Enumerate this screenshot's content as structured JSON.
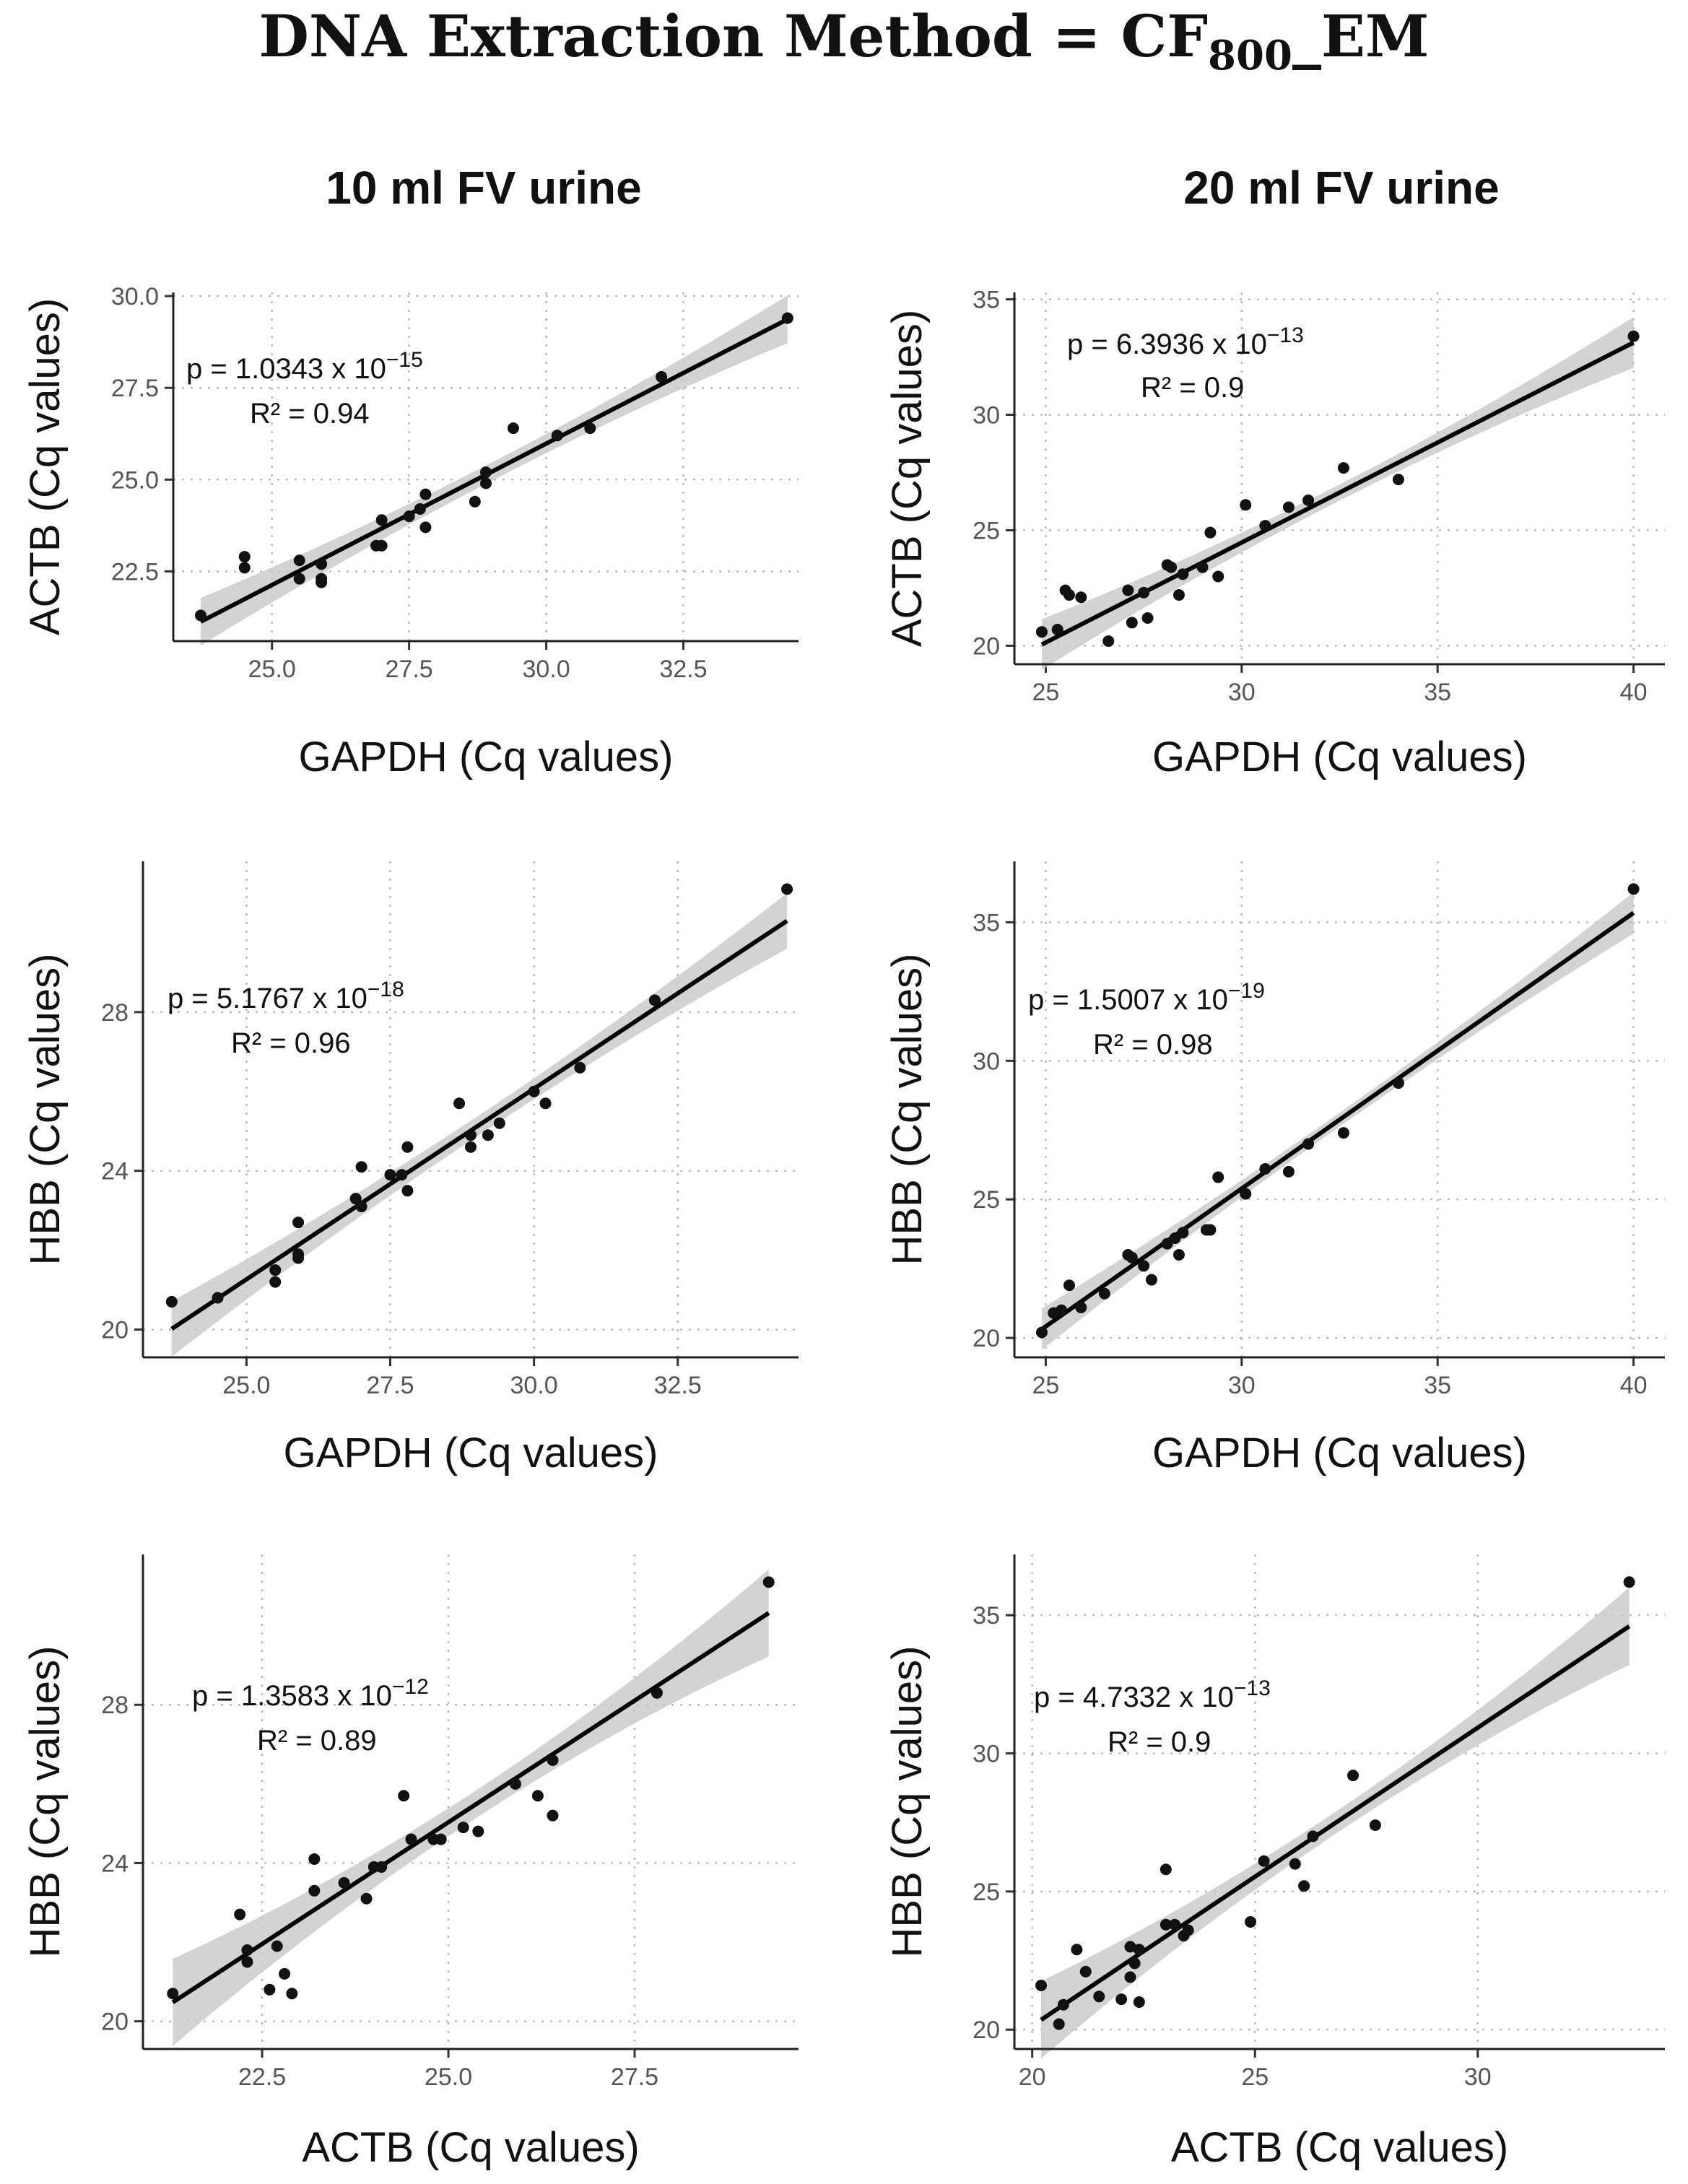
{
  "figure_title": "DNA Extraction Method = CF",
  "figure_title_sub": "800",
  "figure_title_suffix": "_EM",
  "column_titles": [
    "10 ml FV urine",
    "20 ml FV urine"
  ],
  "chart_data": [
    {
      "id": "p1",
      "type": "scatter",
      "column": "10 ml FV urine",
      "xlabel": "GAPDH (Cq values)",
      "ylabel": "ACTB (Cq values)",
      "xlim": [
        23.2,
        34.6
      ],
      "ylim": [
        20.6,
        30.1
      ],
      "xticks": [
        "25.0",
        "27.5",
        "30.0",
        "32.5"
      ],
      "yticks": [
        "22.5",
        "25.0",
        "27.5",
        "30.0"
      ],
      "p_label": "p = 1.0343 x 10",
      "p_exp": "−15",
      "r2_label": "R² = 0.94",
      "fit": {
        "intercept": 2.88,
        "slope": 0.77,
        "band_half_width_ends": 0.65,
        "band_half_width_mid": 0.25
      },
      "x": [
        23.7,
        24.5,
        24.5,
        25.5,
        25.5,
        25.9,
        25.9,
        25.9,
        26.9,
        27.0,
        27.0,
        27.5,
        27.7,
        27.8,
        27.8,
        28.7,
        28.9,
        28.9,
        29.4,
        30.2,
        30.8,
        32.1,
        34.4
      ],
      "y": [
        21.3,
        22.6,
        22.9,
        22.3,
        22.8,
        22.2,
        22.3,
        22.7,
        23.2,
        23.2,
        23.9,
        24.0,
        24.2,
        23.7,
        24.6,
        24.4,
        24.9,
        25.2,
        26.4,
        26.2,
        26.4,
        27.8,
        29.4
      ]
    },
    {
      "id": "p2",
      "type": "scatter",
      "column": "20 ml FV urine",
      "xlabel": "GAPDH (Cq values)",
      "ylabel": "ACTB (Cq values)",
      "xlim": [
        24.2,
        40.8
      ],
      "ylim": [
        19.2,
        35.3
      ],
      "xticks": [
        "25",
        "30",
        "35",
        "40"
      ],
      "yticks": [
        "20",
        "25",
        "30",
        "35"
      ],
      "p_label": "p = 6.3936 x 10",
      "p_exp": "−13",
      "r2_label": "R² = 0.9",
      "fit": {
        "intercept": -1.51,
        "slope": 0.866,
        "band_half_width_ends": 1.1,
        "band_half_width_mid": 0.35
      },
      "x": [
        24.9,
        25.3,
        25.5,
        25.6,
        25.9,
        26.6,
        27.1,
        27.2,
        27.5,
        27.6,
        28.1,
        28.2,
        28.4,
        28.5,
        29.0,
        29.2,
        29.4,
        30.1,
        30.6,
        31.2,
        31.7,
        32.6,
        34.0,
        40.0
      ],
      "y": [
        20.6,
        20.7,
        22.4,
        22.2,
        22.1,
        20.2,
        22.4,
        21.0,
        22.3,
        21.2,
        23.5,
        23.4,
        22.2,
        23.1,
        23.4,
        24.9,
        23.0,
        26.1,
        25.2,
        26.0,
        26.3,
        27.7,
        27.2,
        33.4
      ]
    },
    {
      "id": "p3",
      "type": "scatter",
      "column": "10 ml FV urine",
      "xlabel": "GAPDH (Cq values)",
      "ylabel": "HBB (Cq values)",
      "xlim": [
        23.2,
        34.6
      ],
      "ylim": [
        19.3,
        31.8
      ],
      "xticks": [
        "25.0",
        "27.5",
        "30.0",
        "32.5"
      ],
      "yticks": [
        "20",
        "24",
        "28"
      ],
      "p_label": "p = 5.1767 x 10",
      "p_exp": "−18",
      "r2_label": "R² = 0.96",
      "fit": {
        "intercept": -2.76,
        "slope": 0.961,
        "band_half_width_ends": 0.7,
        "band_half_width_mid": 0.25
      },
      "x": [
        23.7,
        24.5,
        25.5,
        25.5,
        25.9,
        25.9,
        25.9,
        26.9,
        27.0,
        27.0,
        27.5,
        27.7,
        27.8,
        27.8,
        28.7,
        28.9,
        28.9,
        29.2,
        29.4,
        30.0,
        30.2,
        30.8,
        32.1,
        34.4
      ],
      "y": [
        20.7,
        20.8,
        21.2,
        21.5,
        21.8,
        21.9,
        22.7,
        23.3,
        23.1,
        24.1,
        23.9,
        23.9,
        23.5,
        24.6,
        25.7,
        24.6,
        24.9,
        24.9,
        25.2,
        26.0,
        25.7,
        26.6,
        28.3,
        31.1
      ]
    },
    {
      "id": "p4",
      "type": "scatter",
      "column": "20 ml FV urine",
      "xlabel": "GAPDH (Cq values)",
      "ylabel": "HBB (Cq values)",
      "xlim": [
        24.2,
        40.8
      ],
      "ylim": [
        19.3,
        37.2
      ],
      "xticks": [
        "25",
        "30",
        "35",
        "40"
      ],
      "yticks": [
        "20",
        "25",
        "30",
        "35"
      ],
      "p_label": "p = 1.5007 x 10",
      "p_exp": "−19",
      "r2_label": "R² = 0.98",
      "fit": {
        "intercept": -4.46,
        "slope": 0.995,
        "band_half_width_ends": 0.75,
        "band_half_width_mid": 0.25
      },
      "x": [
        24.9,
        25.2,
        25.4,
        25.6,
        25.9,
        26.5,
        27.1,
        27.2,
        27.5,
        27.7,
        28.1,
        28.3,
        28.4,
        28.5,
        29.1,
        29.2,
        29.4,
        30.1,
        30.6,
        31.2,
        31.7,
        32.6,
        34.0,
        40.0
      ],
      "y": [
        20.2,
        20.9,
        21.0,
        21.9,
        21.1,
        21.6,
        23.0,
        22.9,
        22.6,
        22.1,
        23.4,
        23.6,
        23.0,
        23.8,
        23.9,
        23.9,
        25.8,
        25.2,
        26.1,
        26.0,
        27.0,
        27.4,
        29.2,
        36.2
      ]
    },
    {
      "id": "p5",
      "type": "scatter",
      "column": "10 ml FV urine",
      "xlabel": "ACTB (Cq values)",
      "ylabel": "HBB (Cq values)",
      "xlim": [
        20.9,
        29.7
      ],
      "ylim": [
        19.3,
        31.8
      ],
      "xticks": [
        "22.5",
        "25.0",
        "27.5"
      ],
      "yticks": [
        "20",
        "24",
        "28"
      ],
      "p_label": "p = 1.3583 x 10",
      "p_exp": "−12",
      "r2_label": "R² = 0.89",
      "fit": {
        "intercept": -5.72,
        "slope": 1.23,
        "band_half_width_ends": 1.1,
        "band_half_width_mid": 0.35
      },
      "x": [
        21.3,
        22.2,
        22.3,
        22.3,
        22.6,
        22.7,
        22.8,
        22.9,
        23.2,
        23.2,
        23.6,
        23.9,
        24.0,
        24.1,
        24.4,
        24.5,
        24.8,
        24.9,
        25.2,
        25.4,
        25.9,
        26.2,
        26.4,
        26.4,
        27.8,
        29.3
      ],
      "y": [
        20.7,
        22.7,
        21.5,
        21.8,
        20.8,
        21.9,
        21.2,
        20.7,
        23.3,
        24.1,
        23.5,
        23.1,
        23.9,
        23.9,
        25.7,
        24.6,
        24.6,
        24.6,
        24.9,
        24.8,
        26.0,
        25.7,
        26.6,
        25.2,
        28.3,
        31.1
      ]
    },
    {
      "id": "p6",
      "type": "scatter",
      "column": "20 ml FV urine",
      "xlabel": "ACTB (Cq values)",
      "ylabel": "HBB (Cq values)",
      "xlim": [
        19.6,
        34.2
      ],
      "ylim": [
        19.3,
        37.2
      ],
      "xticks": [
        "20",
        "25",
        "30"
      ],
      "yticks": [
        "20",
        "25",
        "30",
        "35"
      ],
      "p_label": "p = 4.7332 x 10",
      "p_exp": "−13",
      "r2_label": "R² = 0.9",
      "fit": {
        "intercept": -1.44,
        "slope": 1.079,
        "band_half_width_ends": 1.4,
        "band_half_width_mid": 0.4
      },
      "x": [
        20.2,
        20.6,
        20.7,
        21.0,
        21.2,
        21.5,
        22.0,
        22.2,
        22.2,
        22.3,
        22.4,
        22.4,
        23.0,
        23.0,
        23.2,
        23.4,
        23.5,
        24.9,
        25.2,
        25.9,
        26.1,
        26.3,
        27.2,
        27.7,
        33.4
      ],
      "y": [
        21.6,
        20.2,
        20.9,
        22.9,
        22.1,
        21.2,
        21.1,
        21.9,
        23.0,
        22.4,
        21.0,
        22.9,
        23.8,
        25.8,
        23.8,
        23.4,
        23.6,
        23.9,
        26.1,
        26.0,
        25.2,
        27.0,
        29.2,
        27.4,
        36.2
      ]
    }
  ]
}
